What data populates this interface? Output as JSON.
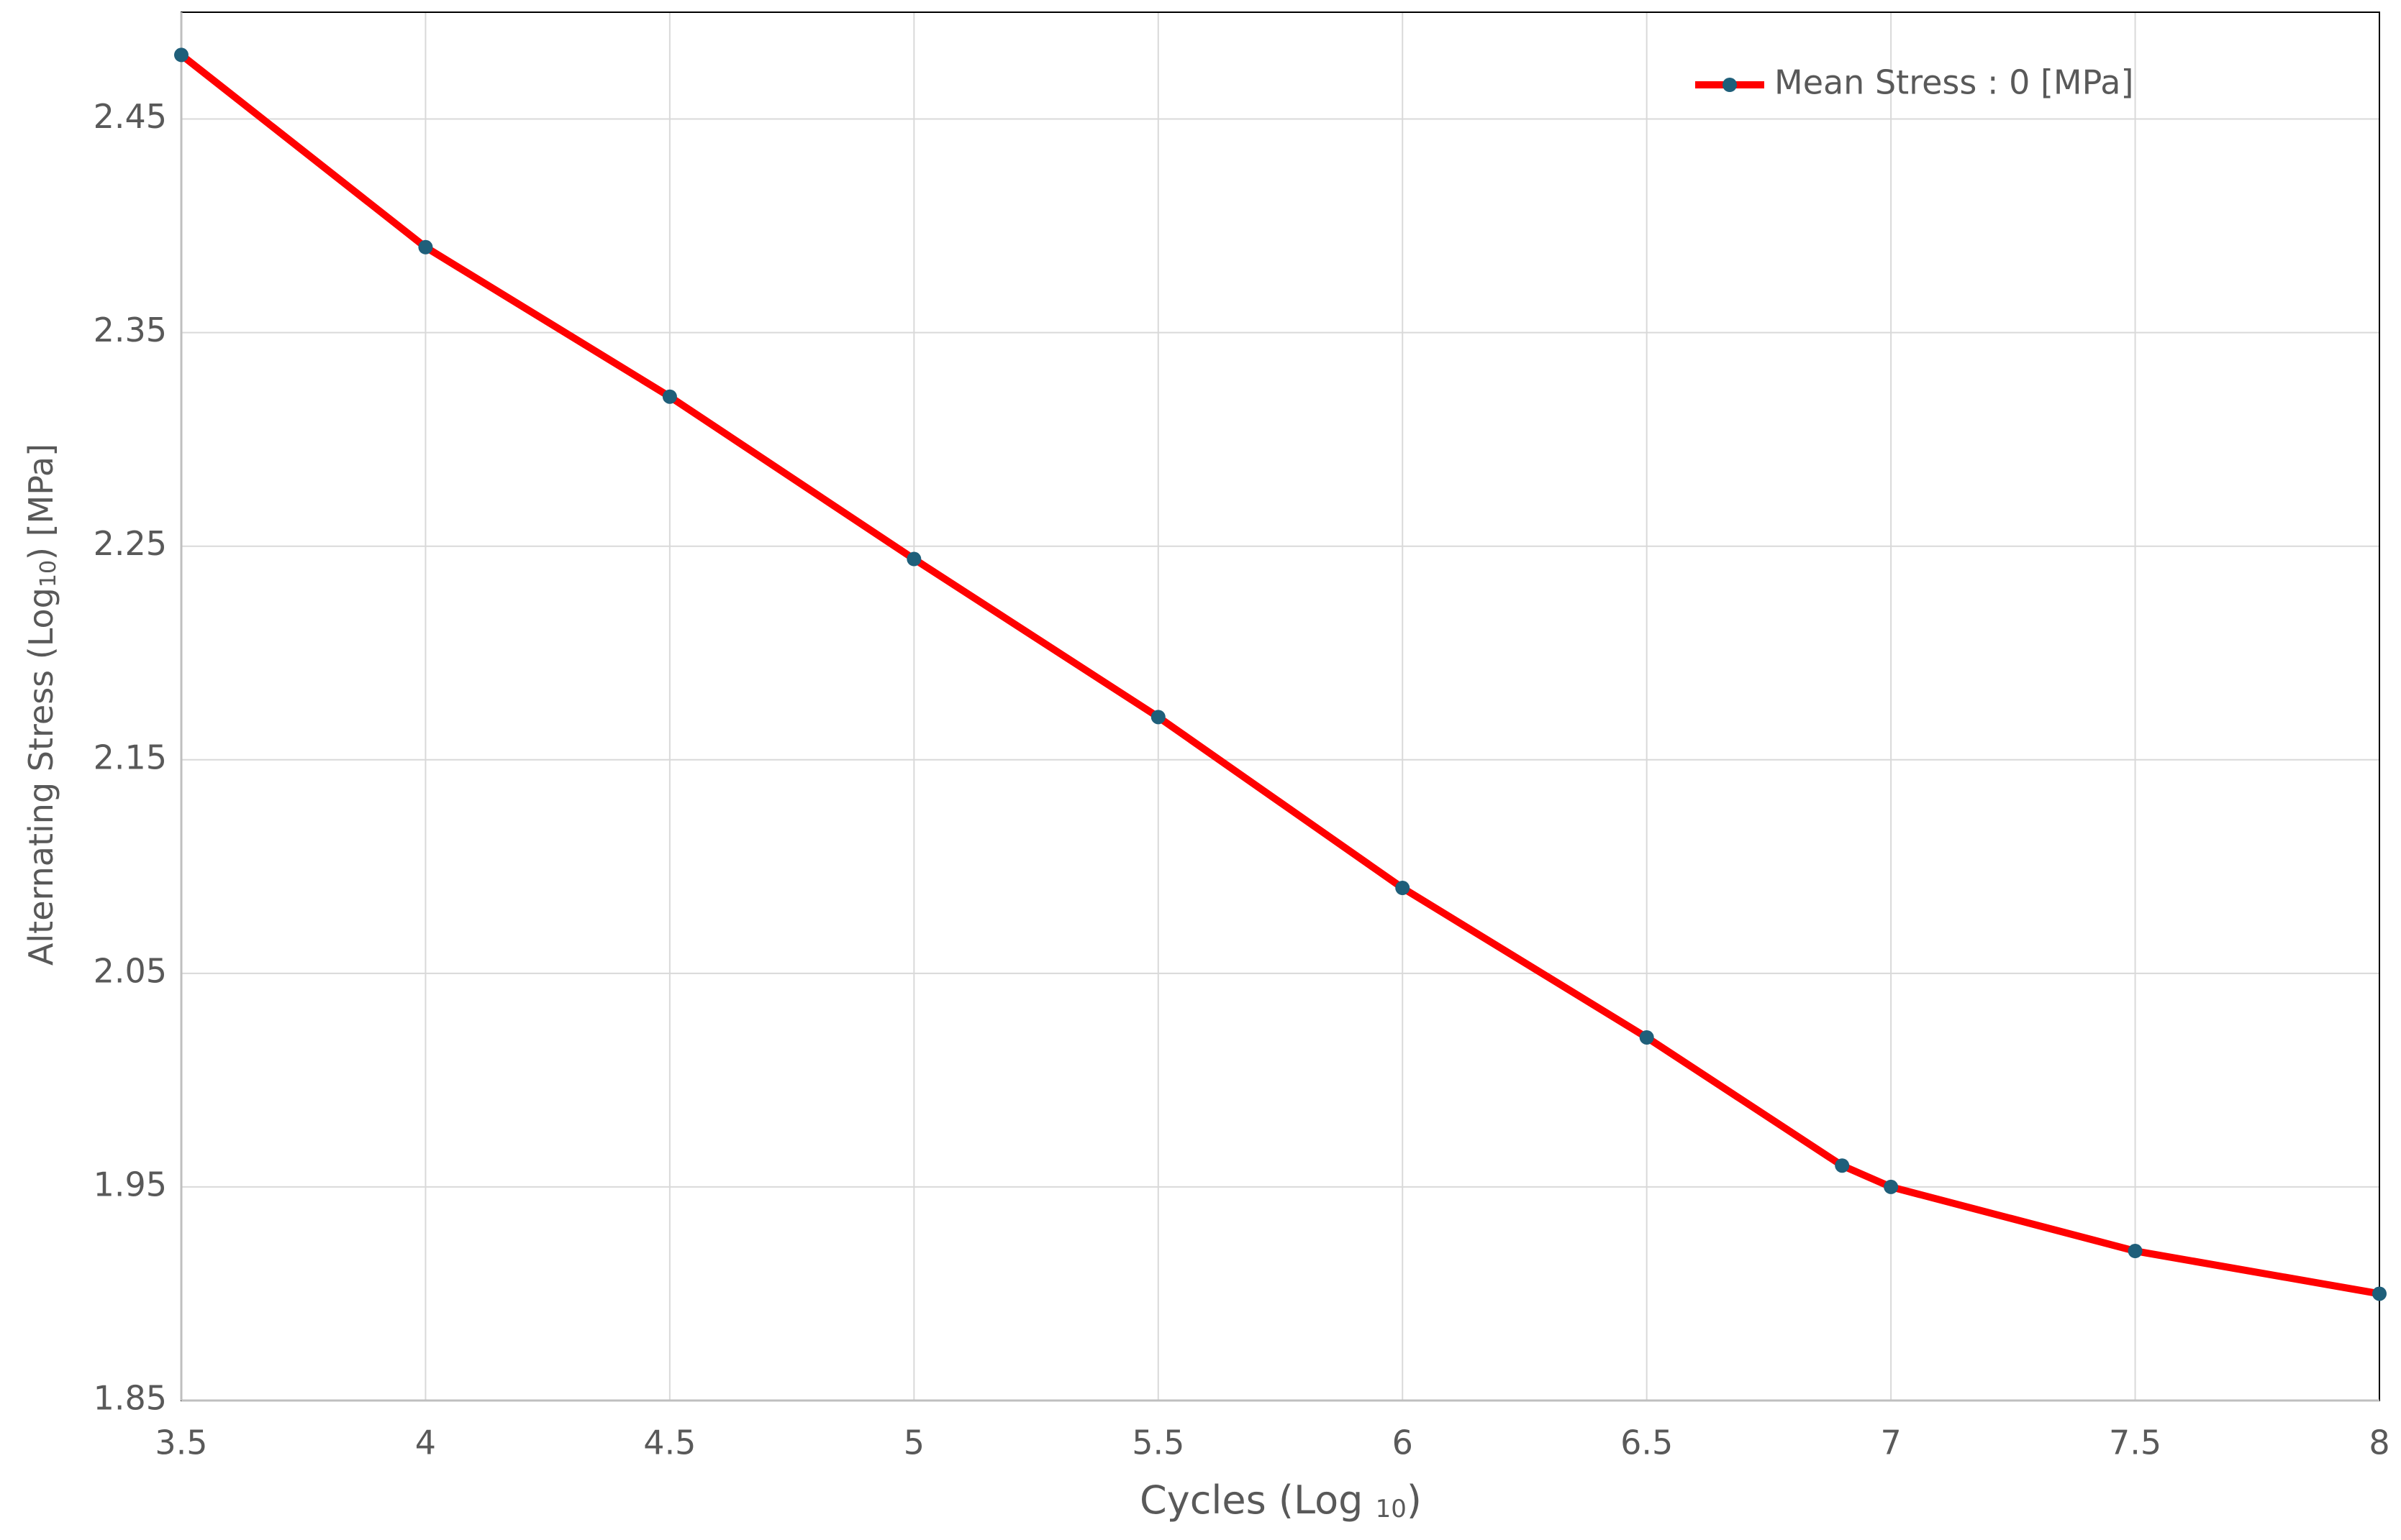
{
  "chart_data": {
    "type": "line",
    "xlabel": [
      "Cycles (Log ",
      "10",
      ")"
    ],
    "ylabel": [
      "Alternating Stress (Log",
      "10",
      ")  [MPa]"
    ],
    "x": [
      3.5,
      4,
      4.5,
      5,
      5.5,
      6,
      6.5,
      6.9,
      7,
      7.5,
      8
    ],
    "series": [
      {
        "name": "Mean Stress : 0 [MPa]",
        "color": "#ff0000",
        "marker_color": "#1f5f7a",
        "values": [
          2.48,
          2.39,
          2.32,
          2.244,
          2.17,
          2.09,
          2.02,
          1.96,
          1.95,
          1.92,
          1.9
        ]
      }
    ],
    "xlim": [
      3.5,
      8
    ],
    "xticks": [
      3.5,
      4,
      4.5,
      5,
      5.5,
      6,
      6.5,
      7,
      7.5,
      8
    ],
    "ylim": [
      1.85,
      2.5
    ],
    "yticks": [
      1.85,
      1.95,
      2.05,
      2.15,
      2.25,
      2.35,
      2.45
    ],
    "grid": true,
    "legend": "upper right"
  }
}
